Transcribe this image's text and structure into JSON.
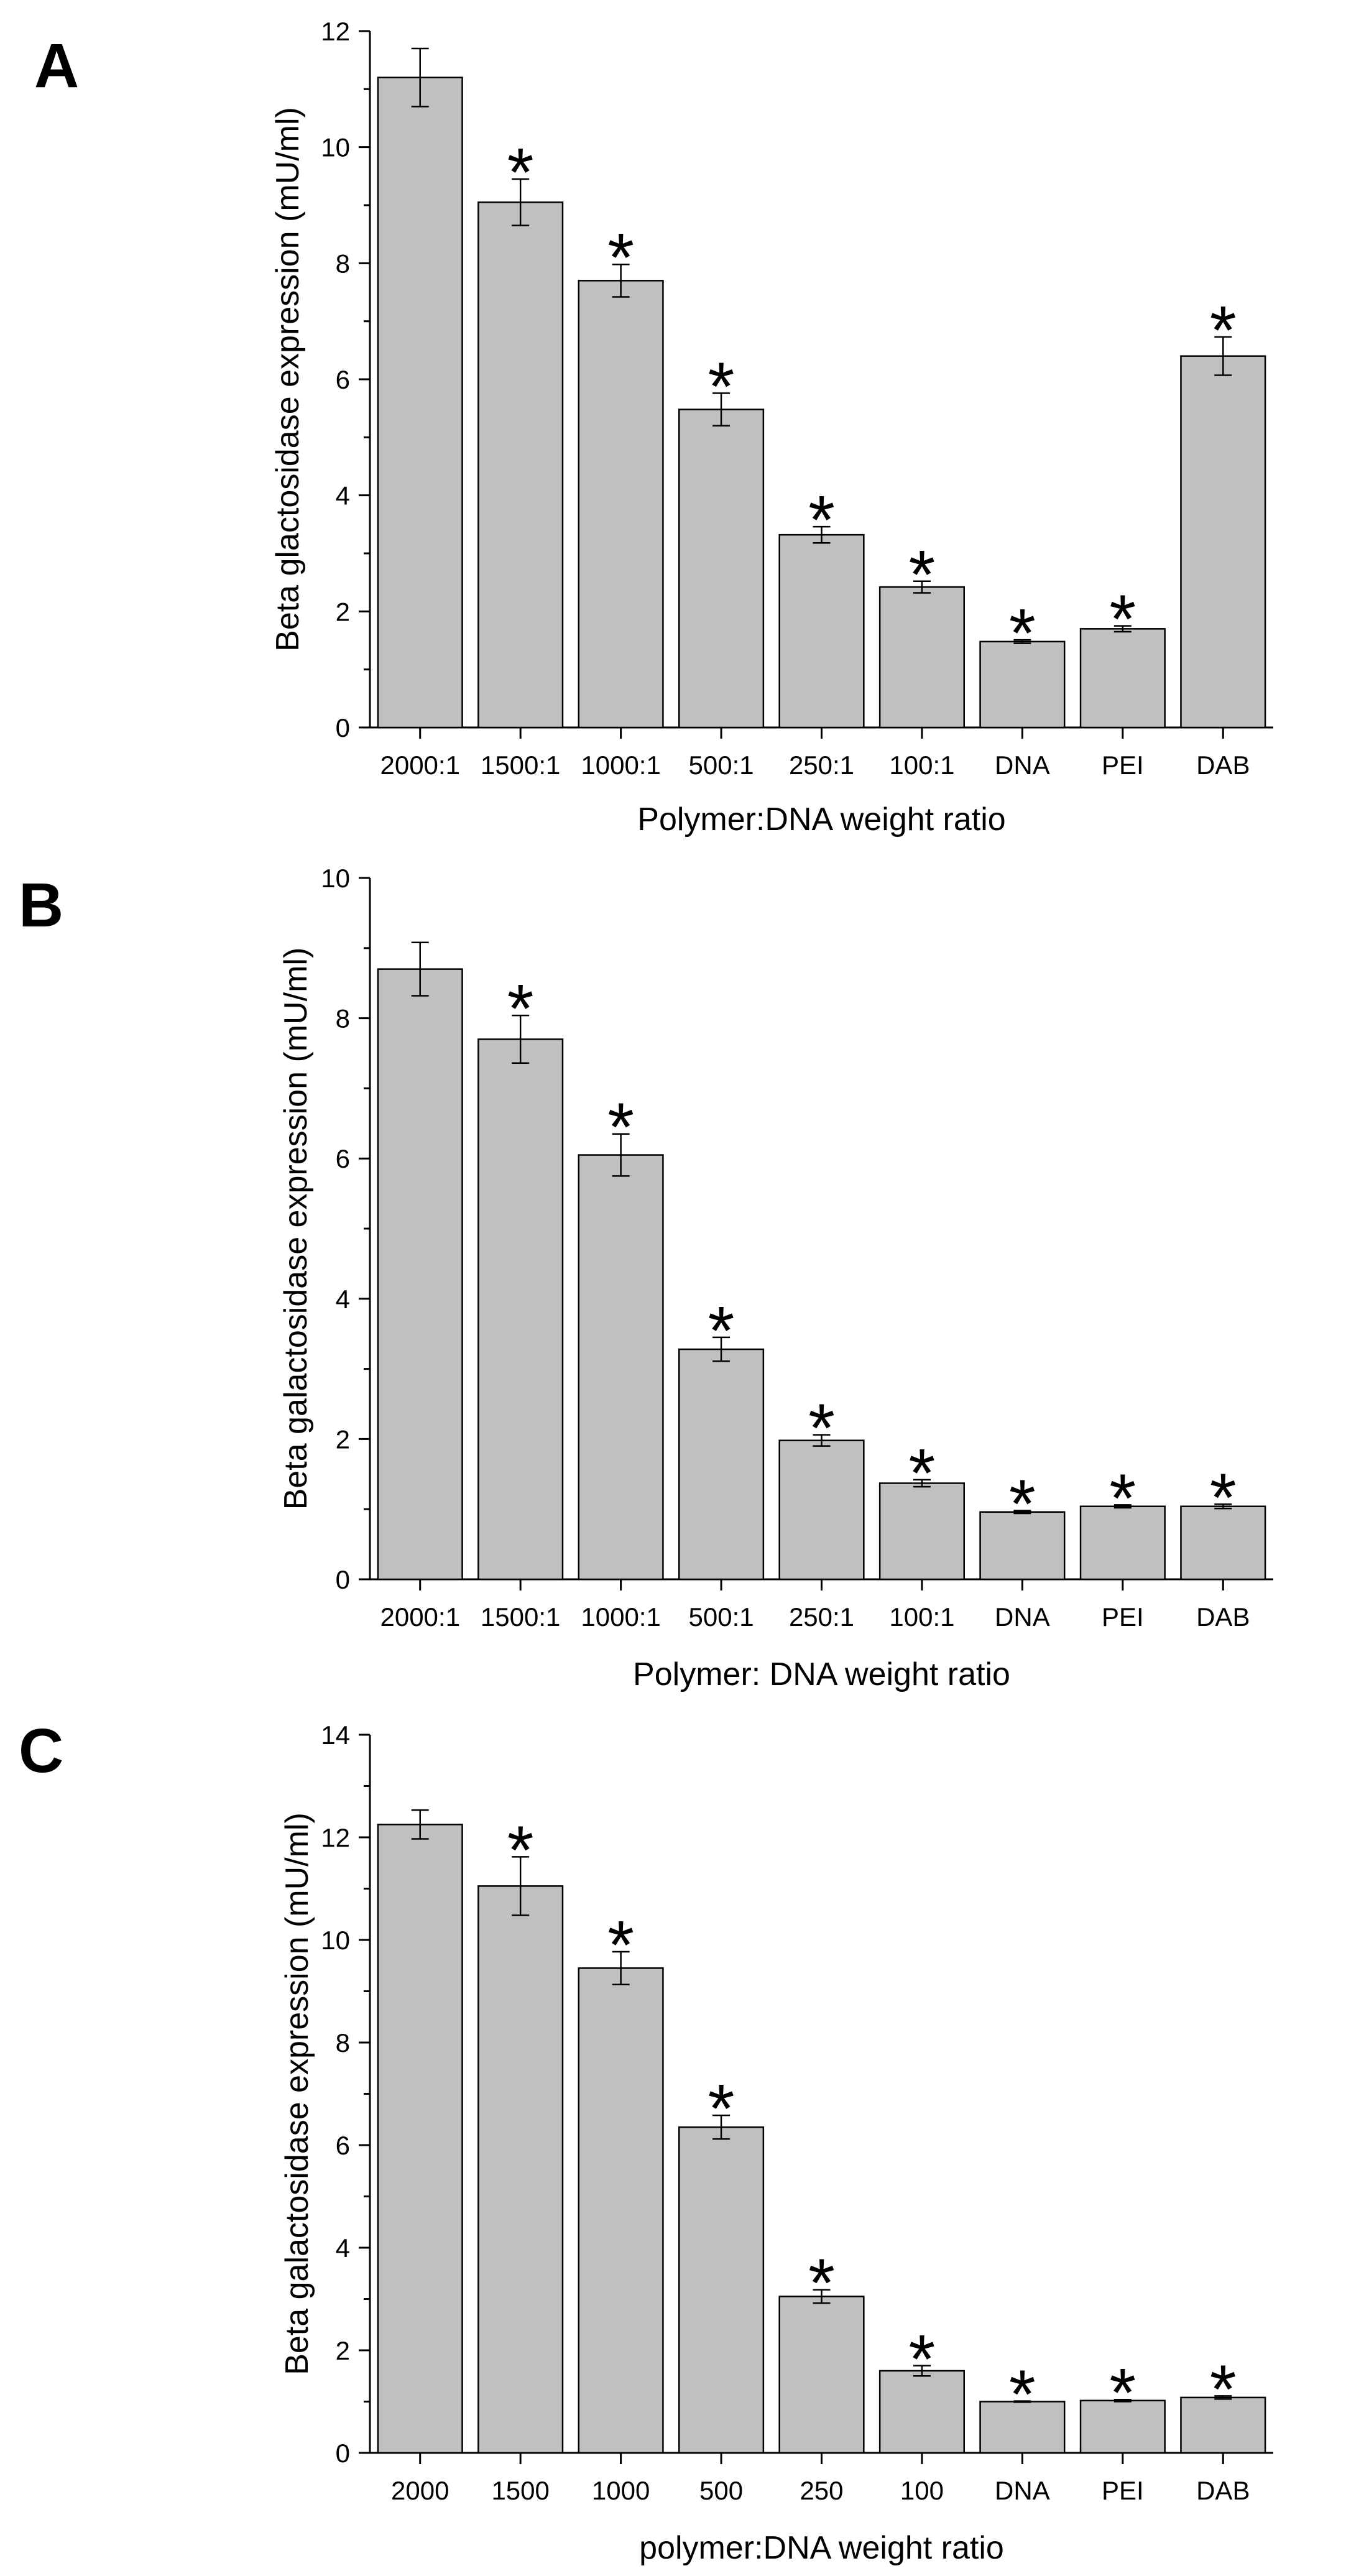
{
  "colors": {
    "bar_fill": "#c0c0c0",
    "bar_stroke": "#000000",
    "axis": "#000000"
  },
  "chart_data": [
    {
      "panel": "A",
      "type": "bar",
      "categories": [
        "2000:1",
        "1500:1",
        "1000:1",
        "500:1",
        "250:1",
        "100:1",
        "DNA",
        "PEI",
        "DAB"
      ],
      "values": [
        11.2,
        9.05,
        7.7,
        5.48,
        3.32,
        2.42,
        1.48,
        1.7,
        6.4
      ],
      "errors": [
        0.5,
        0.4,
        0.28,
        0.28,
        0.14,
        0.1,
        0.03,
        0.05,
        0.33
      ],
      "significant": [
        false,
        true,
        true,
        true,
        true,
        true,
        true,
        true,
        true
      ],
      "marker": "*",
      "xlabel": "Polymer:DNA weight ratio",
      "ylabel": "Beta glactosidase expression (mU/ml)",
      "ylim": [
        0,
        12
      ],
      "yticks": [
        0,
        2,
        4,
        6,
        8,
        10,
        12
      ],
      "ytick_labels": [
        "0",
        "2",
        "4",
        "6",
        "8",
        "10",
        "12"
      ]
    },
    {
      "panel": "B",
      "type": "bar",
      "categories": [
        "2000:1",
        "1500:1",
        "1000:1",
        "500:1",
        "250:1",
        "100:1",
        "DNA",
        "PEI",
        "DAB"
      ],
      "values": [
        8.7,
        7.7,
        6.05,
        3.28,
        1.98,
        1.37,
        0.96,
        1.04,
        1.04
      ],
      "errors": [
        0.38,
        0.34,
        0.3,
        0.17,
        0.08,
        0.05,
        0.02,
        0.02,
        0.03
      ],
      "significant": [
        false,
        true,
        true,
        true,
        true,
        true,
        true,
        true,
        true
      ],
      "marker": "*",
      "xlabel": "Polymer: DNA weight ratio",
      "ylabel": "Beta galactosidase expression (mU/ml)",
      "ylim": [
        0,
        10
      ],
      "yticks": [
        0,
        2,
        4,
        6,
        8,
        10
      ],
      "ytick_labels": [
        "0",
        "2",
        "4",
        "6",
        "8",
        "10"
      ]
    },
    {
      "panel": "C",
      "type": "bar",
      "categories": [
        "2000",
        "1500",
        "1000",
        "500",
        "250",
        "100",
        "DNA",
        "PEI",
        "DAB"
      ],
      "values": [
        12.25,
        11.05,
        9.45,
        6.35,
        3.05,
        1.6,
        1.0,
        1.02,
        1.08
      ],
      "errors": [
        0.28,
        0.57,
        0.32,
        0.23,
        0.13,
        0.1,
        0.01,
        0.02,
        0.03
      ],
      "significant": [
        false,
        true,
        true,
        true,
        true,
        true,
        true,
        true,
        true
      ],
      "marker": "*",
      "xlabel": "polymer:DNA weight ratio",
      "ylabel": "Beta galactosidase expression (mU/ml)",
      "ylim": [
        0,
        14
      ],
      "yticks": [
        0,
        2,
        4,
        6,
        8,
        10,
        12,
        14
      ],
      "ytick_labels": [
        "0",
        "2",
        "4",
        "6",
        "8",
        "10",
        "12",
        "14"
      ]
    }
  ]
}
